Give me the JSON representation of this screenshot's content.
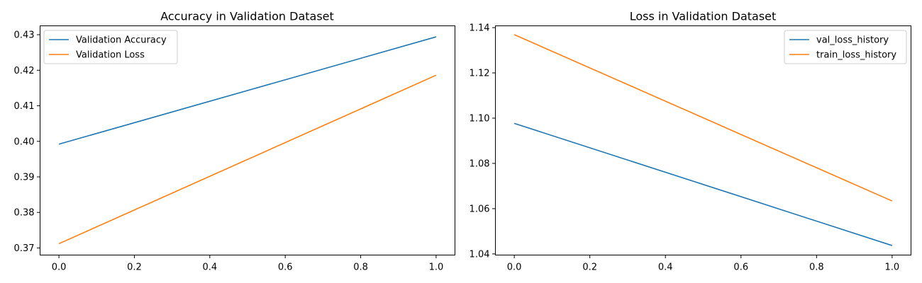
{
  "chart_data": [
    {
      "type": "line",
      "title": "Accuracy in Validation Dataset",
      "xlabel": "",
      "ylabel": "",
      "xlim": [
        -0.05,
        1.05
      ],
      "ylim": [
        0.368,
        0.4325
      ],
      "x_ticks": [
        0.0,
        0.2,
        0.4,
        0.6,
        0.8,
        1.0
      ],
      "x_tick_labels": [
        "0.0",
        "0.2",
        "0.4",
        "0.6",
        "0.8",
        "1.0"
      ],
      "y_ticks": [
        0.37,
        0.38,
        0.39,
        0.4,
        0.41,
        0.42,
        0.43
      ],
      "y_tick_labels": [
        "0.37",
        "0.38",
        "0.39",
        "0.40",
        "0.41",
        "0.42",
        "0.43"
      ],
      "grid": false,
      "legend_position": "upper-left",
      "series": [
        {
          "name": "Validation Accuracy",
          "x": [
            0,
            1
          ],
          "y": [
            0.3992,
            0.4294
          ],
          "color": "#1f77b4"
        },
        {
          "name": "Validation Loss",
          "x": [
            0,
            1
          ],
          "y": [
            0.3712,
            0.4186
          ],
          "color": "#ff7f0e"
        }
      ]
    },
    {
      "type": "line",
      "title": "Loss in Validation Dataset",
      "xlabel": "",
      "ylabel": "",
      "xlim": [
        -0.05,
        1.05
      ],
      "ylim": [
        1.0395,
        1.1408
      ],
      "x_ticks": [
        0.0,
        0.2,
        0.4,
        0.6,
        0.8,
        1.0
      ],
      "x_tick_labels": [
        "0.0",
        "0.2",
        "0.4",
        "0.6",
        "0.8",
        "1.0"
      ],
      "y_ticks": [
        1.04,
        1.06,
        1.08,
        1.1,
        1.12,
        1.14
      ],
      "y_tick_labels": [
        "1.04",
        "1.06",
        "1.08",
        "1.10",
        "1.12",
        "1.14"
      ],
      "grid": false,
      "legend_position": "upper-right",
      "series": [
        {
          "name": "val_loss_history",
          "x": [
            0,
            1
          ],
          "y": [
            1.0977,
            1.0437
          ],
          "color": "#1f77b4"
        },
        {
          "name": "train_loss_history",
          "x": [
            0,
            1
          ],
          "y": [
            1.1369,
            1.0634
          ],
          "color": "#ff7f0e"
        }
      ]
    }
  ]
}
